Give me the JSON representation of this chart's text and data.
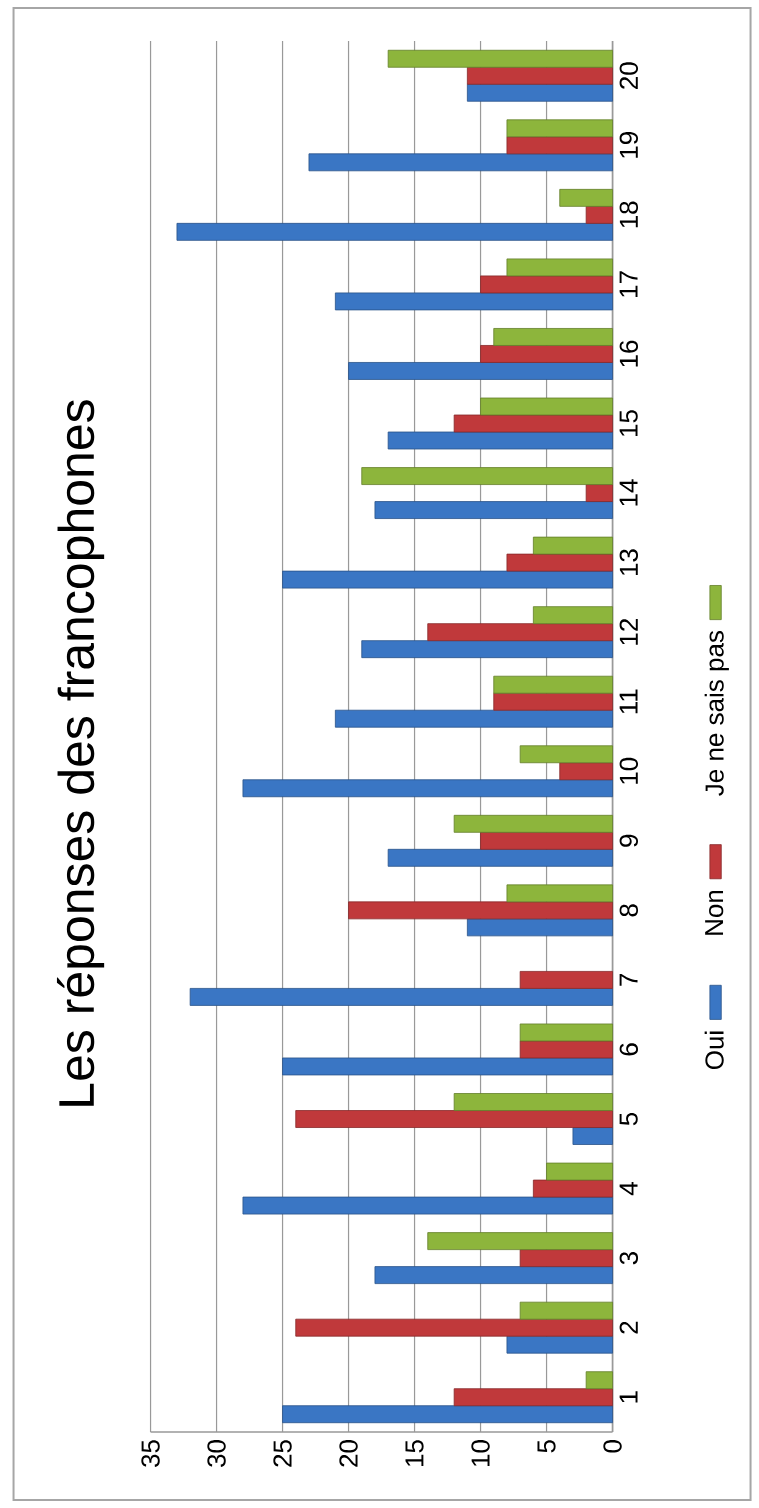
{
  "chart_data": {
    "type": "bar",
    "title": "Les réponses des francophones",
    "orientation": "horizontal",
    "categories": [
      "20",
      "19",
      "18",
      "17",
      "16",
      "15",
      "14",
      "13",
      "12",
      "11",
      "10",
      "9",
      "8",
      "7",
      "6",
      "5",
      "4",
      "3",
      "2",
      "1"
    ],
    "series": [
      {
        "name": "Oui",
        "color": "#3a76c4",
        "values": [
          11,
          23,
          33,
          21,
          20,
          17,
          18,
          25,
          19,
          21,
          28,
          17,
          11,
          32,
          25,
          3,
          28,
          18,
          8,
          25
        ]
      },
      {
        "name": "Non",
        "color": "#c0393b",
        "values": [
          11,
          8,
          2,
          10,
          10,
          12,
          2,
          8,
          14,
          9,
          4,
          10,
          20,
          7,
          7,
          24,
          6,
          7,
          24,
          12
        ]
      },
      {
        "name": "Je ne sais pas",
        "color": "#8db53c",
        "values": [
          17,
          8,
          4,
          8,
          9,
          10,
          19,
          6,
          6,
          9,
          7,
          12,
          8,
          null,
          7,
          12,
          5,
          14,
          7,
          2
        ]
      }
    ],
    "xlim": [
      35,
      0
    ],
    "xticks": [
      35,
      30,
      25,
      20,
      15,
      10,
      5,
      0
    ],
    "grid": "x",
    "legend": "right"
  }
}
